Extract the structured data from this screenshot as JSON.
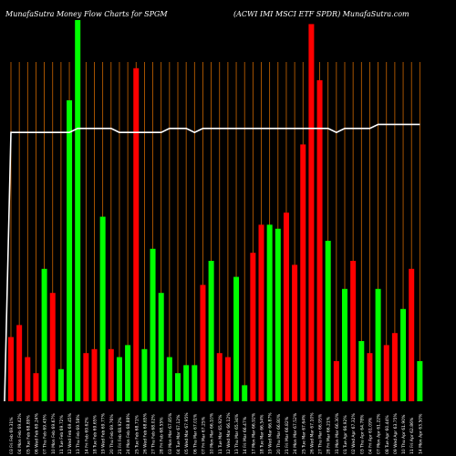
{
  "header": {
    "left": "MunafaSutra  Money Flow  Charts for SPGM",
    "right": "(ACWI IMI MSCI ETF SPDR) MunafaSutra.com"
  },
  "chart_data": {
    "type": "bar",
    "title": "MunafaSutra  Money Flow  Charts for SPGM",
    "subtitle": "(ACWI IMI MSCI ETF SPDR) MunafaSutra.com",
    "xlabel": "",
    "ylabel": "",
    "ylim": [
      0,
      100
    ],
    "grid": true,
    "categories": [
      "03 Fri Feb 69.31%",
      "04 Mon Feb 69.42%",
      "05 Tue Feb 68.89%",
      "06 Wed Feb 69.24%",
      "07 Thu Feb 69.45%",
      "10 Mon Feb 69.67%",
      "11 Tue Feb 69.72%",
      "12 Wed Feb 69.45%",
      "13 Thu Feb 69.58%",
      "14 Fri Feb 69.62%",
      "18 Tue Feb 69.65%",
      "19 Wed Feb 69.77%",
      "20 Thu Feb 69.76%",
      "21 Fri Feb 68.92%",
      "24 Mon Feb 68.88%",
      "25 Tue Feb 68.71%",
      "26 Wed Feb 68.65%",
      "27 Thu Feb 68.02%",
      "28 Fri Feb 68.55%",
      "03 Mon Mar 67.85%",
      "04 Tue Mar 67.12%",
      "05 Wed Mar 67.95%",
      "06 Thu Mar 67.01%",
      "07 Fri Mar 67.25%",
      "10 Mon Mar 66.10%",
      "11 Tue Mar 65.92%",
      "12 Wed Mar 66.12%",
      "13 Thu Mar 65.34%",
      "14 Fri Mar 66.47%",
      "17 Mon Mar 66.92%",
      "18 Tue Mar 66.54%",
      "19 Wed Mar 66.87%",
      "20 Thu Mar 66.80%",
      "21 Fri Mar 66.82%",
      "24 Mon Mar 67.52%",
      "25 Tue Mar 67.64%",
      "26 Wed Mar 67.10%",
      "27 Thu Mar 66.95%",
      "28 Fri Mar 66.21%",
      "31 Mon Mar 66.30%",
      "01 Tue Apr 66.92%",
      "02 Wed Apr 67.32%",
      "03 Thu Apr 64.78%",
      "04 Fri Apr 61.09%",
      "07 Mon Apr 61.22%",
      "08 Tue Apr 60.44%",
      "09 Wed Apr 63.75%",
      "10 Thu Apr 61.90%",
      "11 Fri Apr 62.86%",
      "14 Mon Apr 63.50%"
    ],
    "bar_directions": [
      "down",
      "down",
      "down",
      "down",
      "up",
      "down",
      "up",
      "up",
      "up",
      "down",
      "down",
      "up",
      "down",
      "up",
      "up",
      "down",
      "up",
      "up",
      "up",
      "up",
      "up",
      "up",
      "up",
      "down",
      "up",
      "down",
      "down",
      "up",
      "up",
      "down",
      "down",
      "up",
      "up",
      "down",
      "down",
      "down",
      "down",
      "down",
      "up",
      "down",
      "up",
      "down",
      "up",
      "down",
      "up",
      "down",
      "down",
      "up",
      "down",
      "up"
    ],
    "values": [
      16,
      19,
      11,
      7,
      33,
      27,
      8,
      75,
      95,
      12,
      13,
      46,
      13,
      11,
      14,
      83,
      13,
      38,
      27,
      11,
      7,
      9,
      9,
      29,
      35,
      12,
      11,
      31,
      4,
      37,
      44,
      44,
      43,
      47,
      34,
      64,
      94,
      80,
      40,
      10,
      28,
      35,
      15,
      12,
      28,
      14,
      17,
      23,
      33,
      10
    ],
    "series": [
      {
        "values": [
          67,
          67,
          67,
          67,
          67,
          67,
          67,
          67,
          68,
          68,
          68,
          68,
          68,
          67,
          67,
          67,
          67,
          67,
          67,
          68,
          68,
          68,
          67,
          68,
          68,
          68,
          68,
          68,
          68,
          68,
          68,
          68,
          68,
          68,
          68,
          68,
          68,
          68,
          68,
          67,
          68,
          68,
          68,
          68,
          69,
          69,
          69,
          69,
          69,
          69
        ]
      }
    ],
    "colors": {
      "up": "#00ff00",
      "down": "#ff0000",
      "grid": "#cc6600",
      "line": "#ffffff",
      "label": "#ffffff"
    }
  }
}
